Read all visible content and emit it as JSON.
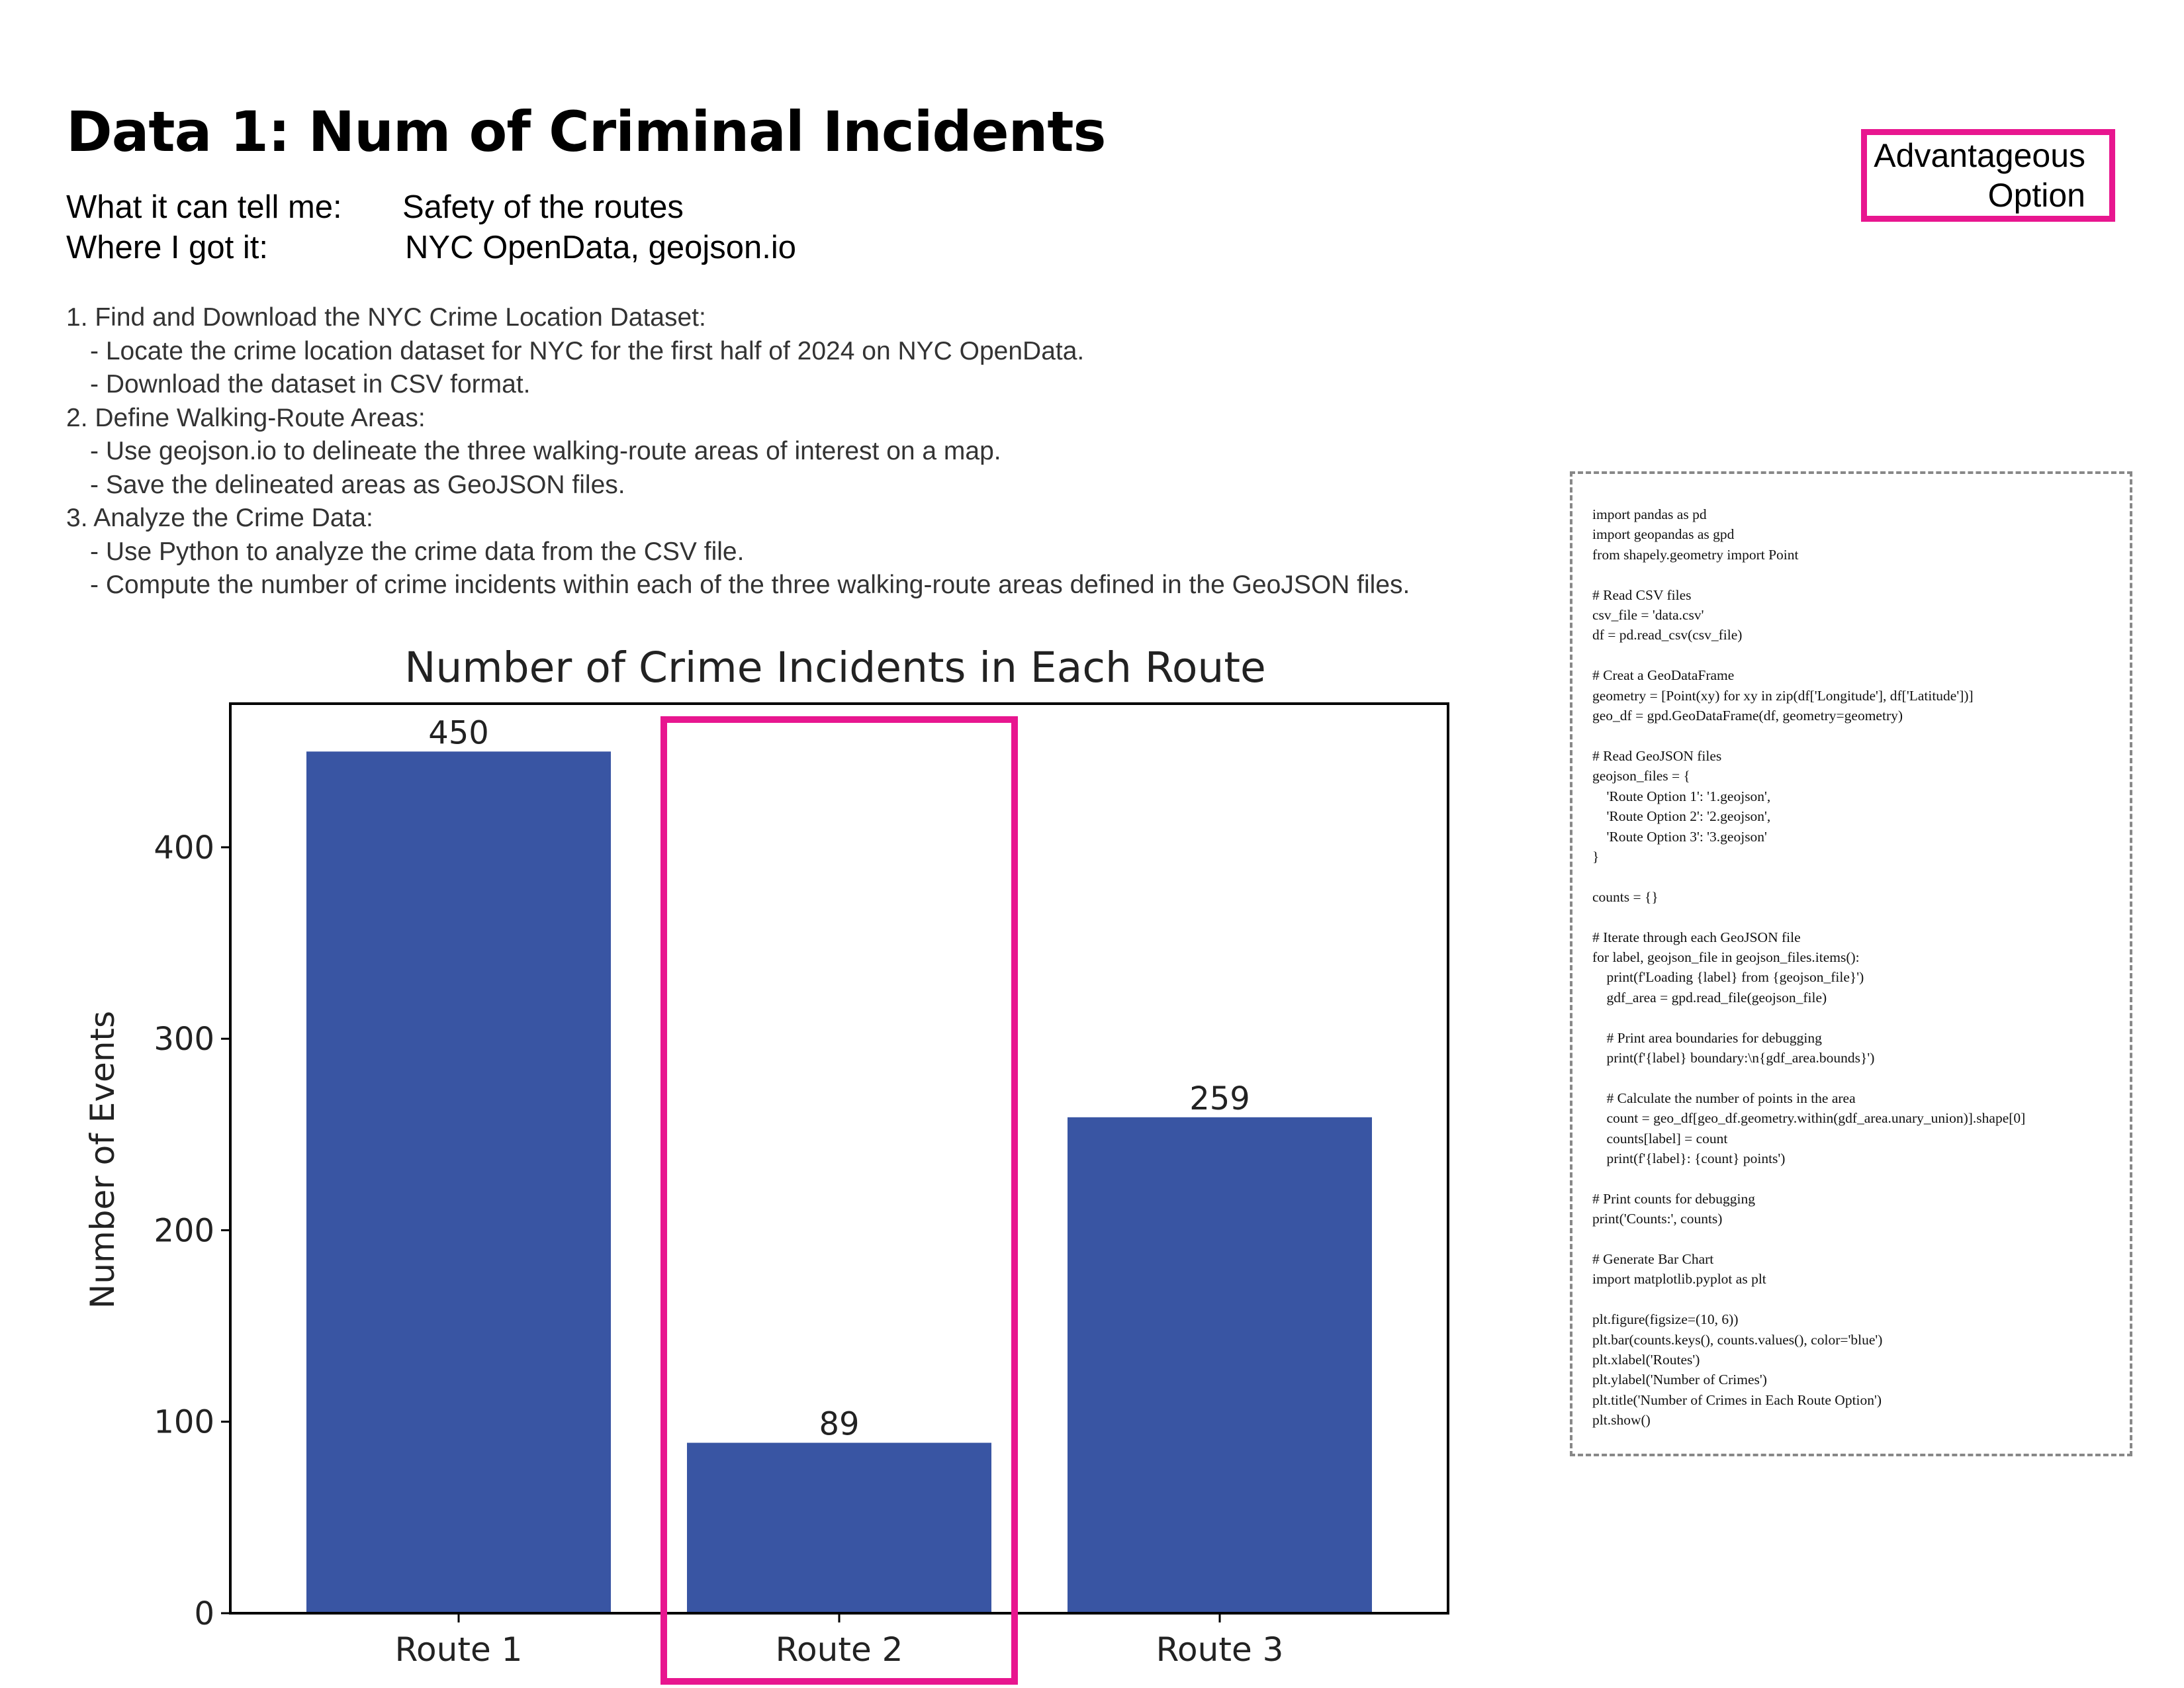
{
  "page": {
    "title": "Data 1: Num of Criminal Incidents",
    "meta": [
      {
        "label": "What it can tell me:",
        "value": "Safety of the routes"
      },
      {
        "label": "Where I got it:",
        "value": "NYC OpenData, geojson.io"
      }
    ],
    "steps": [
      {
        "text": "1. Find and Download the NYC Crime Location Dataset:",
        "sub": false
      },
      {
        "text": "- Locate the crime location dataset for NYC for the first half of 2024 on NYC OpenData.",
        "sub": true
      },
      {
        "text": "- Download the dataset in CSV format.",
        "sub": true
      },
      {
        "text": "2. Define Walking-Route Areas:",
        "sub": false
      },
      {
        "text": "- Use geojson.io to delineate the three walking-route areas of interest on a map.",
        "sub": true
      },
      {
        "text": "- Save the delineated areas as GeoJSON files.",
        "sub": true
      },
      {
        "text": "3. Analyze the Crime Data:",
        "sub": false
      },
      {
        "text": "- Use Python to analyze the crime data from the CSV file.",
        "sub": true
      },
      {
        "text": "- Compute the number of crime incidents within each of the three walking-route areas defined in the GeoJSON files.",
        "sub": true
      }
    ],
    "advantage_label": "Advantageous\nOption",
    "highlight_color": "#e8168f",
    "code_lines": [
      "import pandas as pd",
      "import geopandas as gpd",
      "from shapely.geometry import Point",
      "",
      "# Read CSV files",
      "csv_file = 'data.csv'",
      "df = pd.read_csv(csv_file)",
      "",
      "# Creat a GeoDataFrame",
      "geometry = [Point(xy) for xy in zip(df['Longitude'], df['Latitude'])]",
      "geo_df = gpd.GeoDataFrame(df, geometry=geometry)",
      "",
      "# Read GeoJSON files",
      "geojson_files = {",
      "    'Route Option 1': '1.geojson',",
      "    'Route Option 2': '2.geojson',",
      "    'Route Option 3': '3.geojson'",
      "}",
      "",
      "counts = {}",
      "",
      "# Iterate through each GeoJSON file",
      "for label, geojson_file in geojson_files.items():",
      "    print(f'Loading {label} from {geojson_file}')",
      "    gdf_area = gpd.read_file(geojson_file)",
      "",
      "    # Print area boundaries for debugging",
      "    print(f'{label} boundary:\\n{gdf_area.bounds}')",
      "",
      "    # Calculate the number of points in the area",
      "    count = geo_df[geo_df.geometry.within(gdf_area.unary_union)].shape[0]",
      "    counts[label] = count",
      "    print(f'{label}: {count} points')",
      "",
      "# Print counts for debugging",
      "print('Counts:', counts)",
      "",
      "# Generate Bar Chart",
      "import matplotlib.pyplot as plt",
      "",
      "plt.figure(figsize=(10, 6))",
      "plt.bar(counts.keys(), counts.values(), color='blue')",
      "plt.xlabel('Routes')",
      "plt.ylabel('Number of Crimes')",
      "plt.title('Number of Crimes in Each Route Option')",
      "plt.show()"
    ]
  },
  "chart_data": {
    "type": "bar",
    "title": "Number of Crime Incidents in Each Route",
    "xlabel": "",
    "ylabel": "Number of Events",
    "categories": [
      "Route 1",
      "Route 2",
      "Route 3"
    ],
    "values": [
      450,
      89,
      259
    ],
    "data_labels": [
      "450",
      "89",
      "259"
    ],
    "ylim": [
      0,
      475
    ],
    "yticks": [
      0,
      100,
      200,
      300,
      400
    ],
    "grid": false,
    "bar_color": "#3955a3",
    "highlighted_category": "Route 2"
  }
}
